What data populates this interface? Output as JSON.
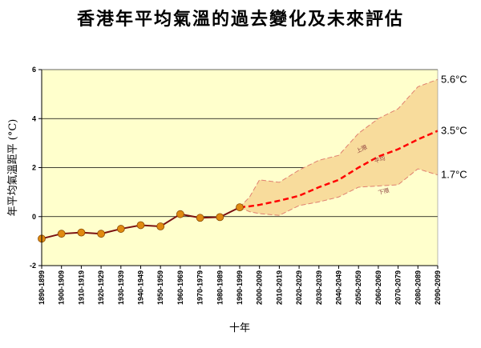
{
  "title": "香港年平均氣溫的過去變化及未來評估",
  "chart_data": {
    "type": "line",
    "xlabel": "十年",
    "ylabel": "年平均氣溫距平 (°C)",
    "ylim": [
      -2,
      6
    ],
    "yticks": [
      -2,
      0,
      2,
      4,
      6
    ],
    "grid": true,
    "categories": [
      "1890-1899",
      "1900-1909",
      "1910-1919",
      "1920-1929",
      "1930-1939",
      "1940-1949",
      "1950-1959",
      "1960-1969",
      "1970-1979",
      "1980-1989",
      "1990-1999",
      "2000-2009",
      "2010-2019",
      "2020-2029",
      "2030-2039",
      "2040-2049",
      "2050-2059",
      "2060-2069",
      "2070-2079",
      "2080-2089",
      "2090-2099"
    ],
    "observed": {
      "x": [
        "1890-1899",
        "1900-1909",
        "1910-1919",
        "1920-1929",
        "1930-1939",
        "1940-1949",
        "1950-1959",
        "1960-1969",
        "1970-1979",
        "1980-1989",
        "1990-1999"
      ],
      "values": [
        -0.9,
        -0.7,
        -0.65,
        -0.7,
        -0.5,
        -0.35,
        -0.4,
        0.1,
        -0.05,
        -0.02,
        0.38
      ]
    },
    "projection": {
      "x": [
        10,
        10.5,
        11,
        12,
        13,
        14,
        15,
        16,
        17,
        18,
        19,
        20
      ],
      "upper": [
        0.38,
        0.8,
        1.5,
        1.4,
        1.9,
        2.3,
        2.5,
        3.4,
        4.0,
        4.4,
        5.3,
        5.6
      ],
      "mean": [
        0.38,
        0.42,
        0.48,
        0.65,
        0.85,
        1.2,
        1.5,
        2.0,
        2.45,
        2.75,
        3.15,
        3.5
      ],
      "lower": [
        0.38,
        0.2,
        0.12,
        0.05,
        0.45,
        0.6,
        0.8,
        1.2,
        1.25,
        1.3,
        1.95,
        1.7
      ]
    },
    "band_labels": {
      "upper": "上限",
      "mean": "平均",
      "lower": "下限"
    },
    "right_labels": {
      "upper": "5.6°C",
      "mean": "3.5°C",
      "lower": "1.7°C"
    },
    "colors": {
      "plot_bg": "#ffffcc",
      "band_fill": "#f8dc9c",
      "band_edge": "#e08070",
      "observed_line": "#7a1010",
      "observed_marker": "#e08a10",
      "mean_line": "#ff0000",
      "grid": "#000000"
    }
  }
}
